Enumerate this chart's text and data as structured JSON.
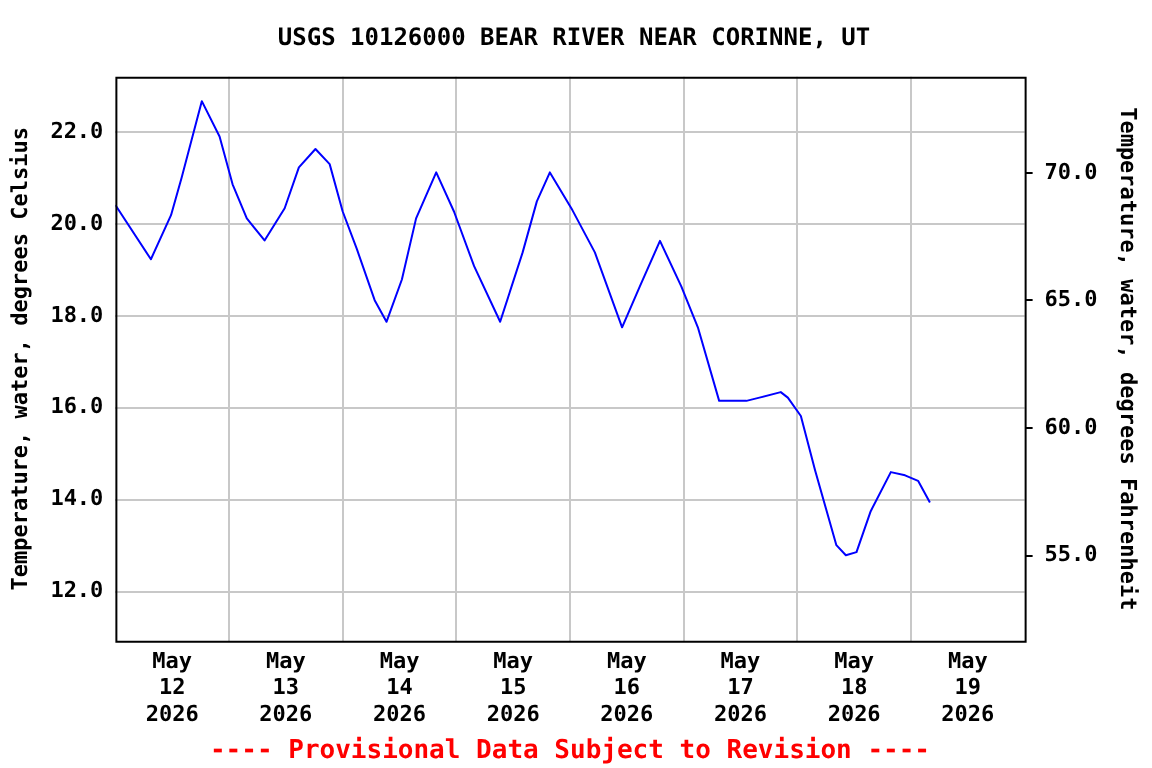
{
  "chart_data": {
    "type": "line",
    "title": "USGS 10126000 BEAR RIVER NEAR CORINNE, UT",
    "ylabel": "Temperature, water, degrees Celsius",
    "y2label": "Temperature, water, degrees Fahrenheit",
    "annotations": [
      "---- Provisional Data Subject to Revision ----"
    ],
    "x": [
      "2026-05-12T00:00",
      "2026-05-12T07:30",
      "2026-05-12T11:45",
      "2026-05-12T14:00",
      "2026-05-12T18:15",
      "2026-05-12T22:00",
      "2026-05-13T00:45",
      "2026-05-13T03:45",
      "2026-05-13T07:30",
      "2026-05-13T11:45",
      "2026-05-13T14:45",
      "2026-05-13T18:15",
      "2026-05-13T21:15",
      "2026-05-14T00:00",
      "2026-05-14T03:00",
      "2026-05-14T06:45",
      "2026-05-14T09:15",
      "2026-05-14T12:30",
      "2026-05-14T15:30",
      "2026-05-14T19:45",
      "2026-05-14T23:30",
      "2026-05-15T03:45",
      "2026-05-15T09:15",
      "2026-05-15T14:00",
      "2026-05-15T17:00",
      "2026-05-15T19:45",
      "2026-05-16T00:30",
      "2026-05-16T05:15",
      "2026-05-16T11:00",
      "2026-05-16T14:45",
      "2026-05-16T19:00",
      "2026-05-16T23:30",
      "2026-05-17T03:00",
      "2026-05-17T07:30",
      "2026-05-17T13:15",
      "2026-05-17T16:00",
      "2026-05-17T20:30",
      "2026-05-17T22:00",
      "2026-05-18T00:45",
      "2026-05-18T03:45",
      "2026-05-18T08:15",
      "2026-05-18T10:15",
      "2026-05-18T12:30",
      "2026-05-18T15:30",
      "2026-05-18T19:45",
      "2026-05-18T22:45",
      "2026-05-19T01:30",
      "2026-05-19T04:00"
    ],
    "series": [
      {
        "color": "#0000ff",
        "values": [
          20.41,
          19.23,
          20.19,
          21.01,
          22.67,
          21.9,
          20.86,
          20.12,
          19.64,
          20.34,
          21.23,
          21.63,
          21.3,
          20.27,
          19.45,
          18.34,
          17.87,
          18.79,
          20.12,
          21.12,
          20.27,
          19.08,
          17.87,
          19.38,
          20.49,
          21.12,
          20.3,
          19.38,
          17.75,
          18.64,
          19.63,
          18.64,
          17.75,
          16.15,
          16.15,
          16.22,
          16.34,
          16.22,
          15.82,
          14.64,
          13.01,
          12.79,
          12.86,
          13.75,
          14.6,
          14.53,
          14.41,
          13.94
        ]
      }
    ],
    "xlim": [
      "2026-05-12T00:00",
      "2026-05-20T00:00"
    ],
    "xticks": [
      {
        "value": "2026-05-12T12:00",
        "label": "May\n12\n2026"
      },
      {
        "value": "2026-05-13T00:00",
        "label": null
      },
      {
        "value": "2026-05-13T12:00",
        "label": "May\n13\n2026"
      },
      {
        "value": "2026-05-14T00:00",
        "label": null
      },
      {
        "value": "2026-05-14T12:00",
        "label": "May\n14\n2026"
      },
      {
        "value": "2026-05-15T00:00",
        "label": null
      },
      {
        "value": "2026-05-15T12:00",
        "label": "May\n15\n2026"
      },
      {
        "value": "2026-05-16T00:00",
        "label": null
      },
      {
        "value": "2026-05-16T12:00",
        "label": "May\n16\n2026"
      },
      {
        "value": "2026-05-17T00:00",
        "label": null
      },
      {
        "value": "2026-05-17T12:00",
        "label": "May\n17\n2026"
      },
      {
        "value": "2026-05-18T00:00",
        "label": null
      },
      {
        "value": "2026-05-18T12:00",
        "label": "May\n18\n2026"
      },
      {
        "value": "2026-05-19T00:00",
        "label": null
      },
      {
        "value": "2026-05-19T12:00",
        "label": "May\n19\n2026"
      }
    ],
    "ylim": [
      10.93,
      23.2
    ],
    "yticks": [
      {
        "value": 12,
        "label": "12.0"
      },
      {
        "value": 14,
        "label": "14.0"
      },
      {
        "value": 16,
        "label": "16.0"
      },
      {
        "value": 18,
        "label": "18.0"
      },
      {
        "value": 20,
        "label": "20.0"
      },
      {
        "value": 22,
        "label": "22.0"
      }
    ],
    "y2lim": [
      51.67,
      73.76
    ],
    "y2ticks": [
      {
        "value": 55,
        "label": "55.0"
      },
      {
        "value": 60,
        "label": "60.0"
      },
      {
        "value": 65,
        "label": "65.0"
      },
      {
        "value": 70,
        "label": "70.0"
      }
    ],
    "grid": true,
    "legend": false,
    "marker": "none",
    "line_style": "solid"
  }
}
